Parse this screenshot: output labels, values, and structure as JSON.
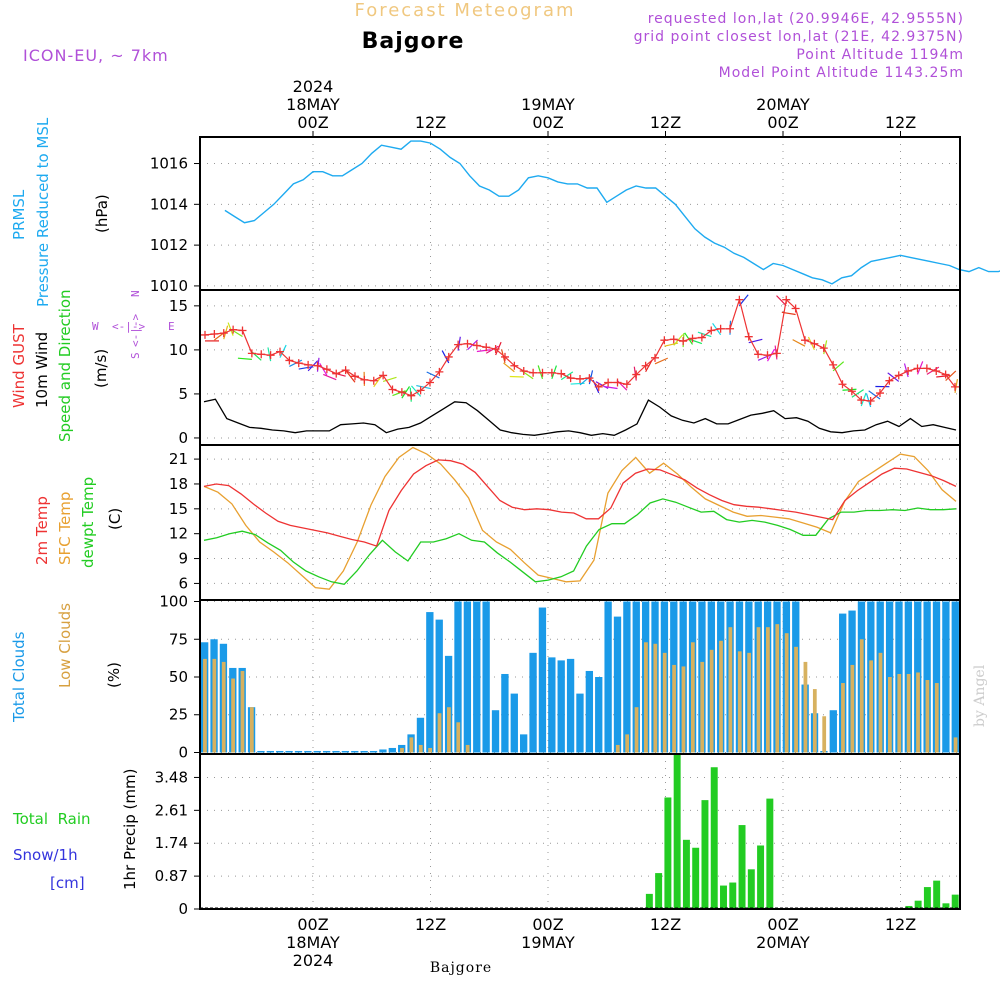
{
  "header": {
    "title_faint": "Forecast Meteogram",
    "location": "Bajgore",
    "model": "ICON-EU, ~ 7km",
    "requested": "requested lon,lat (20.9946E, 42.9555N)",
    "grid_point": "grid point closest lon,lat (21E, 42.9375N)",
    "point_alt": "Point Altitude 1194m",
    "model_alt": "Model Point Altitude 1143.25m"
  },
  "time_axis": {
    "top_labels": [
      {
        "line1": "2024",
        "line2": "18MAY",
        "line3": "00Z",
        "hour": 24
      },
      {
        "line1": "",
        "line2": "",
        "line3": "12Z",
        "hour": 36
      },
      {
        "line1": "",
        "line2": "19MAY",
        "line3": "00Z",
        "hour": 48
      },
      {
        "line1": "",
        "line2": "",
        "line3": "12Z",
        "hour": 60
      },
      {
        "line1": "",
        "line2": "20MAY",
        "line3": "00Z",
        "hour": 72
      },
      {
        "line1": "",
        "line2": "",
        "line3": "12Z",
        "hour": 84
      }
    ],
    "bottom_labels": [
      {
        "line1": "00Z",
        "line2": "18MAY",
        "line3": "2024",
        "hour": 24
      },
      {
        "line1": "12Z",
        "line2": "",
        "line3": "",
        "hour": 36
      },
      {
        "line1": "00Z",
        "line2": "19MAY",
        "line3": "",
        "hour": 48
      },
      {
        "line1": "12Z",
        "line2": "",
        "line3": "",
        "hour": 60
      },
      {
        "line1": "00Z",
        "line2": "20MAY",
        "line3": "",
        "hour": 72
      },
      {
        "line1": "12Z",
        "line2": "",
        "line3": "",
        "hour": 84
      }
    ],
    "footer": "Bajgore",
    "credit": "by Angel"
  },
  "panels": {
    "pressure": {
      "label1": "PRMSL",
      "label2": "Pressure Reduced to MSL",
      "unit": "(hPa)"
    },
    "wind": {
      "label_gust": "Wind GUST",
      "label_wind": "10m Wind",
      "label_dir": "Speed and Direction",
      "unit": "(m/s)",
      "compass_n": "N",
      "compass_s": "S",
      "compass_w": "W",
      "compass_e": "E"
    },
    "temp": {
      "label_2m": "2m Temp",
      "label_sfc": "SFC Temp",
      "label_dew": "dewpt Temp",
      "unit": "(C)"
    },
    "clouds": {
      "label_total": "Total Clouds",
      "label_low": "Low Clouds",
      "unit": "(%)"
    },
    "precip": {
      "label_rain": "Total  Rain",
      "label_snow": "Snow/1h",
      "label_cm": "[cm]",
      "axis_label": "1hr Precip (mm)"
    }
  },
  "colors": {
    "pressure": "#1eaaf0",
    "gust": "#ee3333",
    "wind": "#000000",
    "temp": "#ee3333",
    "sfc": "#e8a030",
    "dew": "#22cc22",
    "total_cloud": "#1a9ae8",
    "low_cloud": "#d7b15f",
    "rain": "#22cc22",
    "title_faint": "#f0c880",
    "purple": "#b050d8",
    "snow_label": "#3333dd"
  },
  "chart_data": [
    {
      "type": "line",
      "name": "PRMSL",
      "ylabel": "(hPa)",
      "ylim": [
        1009.8,
        1017.3
      ],
      "yticks": [
        "1010",
        "1012",
        "1014",
        "1016"
      ],
      "ytick_values": [
        1010,
        1012,
        1014,
        1016
      ],
      "x_hours_start": 15,
      "values": [
        1013.7,
        1013.4,
        1013.1,
        1013.2,
        1013.6,
        1014.0,
        1014.5,
        1015.0,
        1015.2,
        1015.6,
        1015.6,
        1015.4,
        1015.4,
        1015.7,
        1016.0,
        1016.5,
        1016.9,
        1016.8,
        1016.7,
        1017.1,
        1017.1,
        1017.0,
        1016.7,
        1016.3,
        1016.0,
        1015.4,
        1014.9,
        1014.7,
        1014.4,
        1014.4,
        1014.7,
        1015.3,
        1015.4,
        1015.3,
        1015.1,
        1015.0,
        1015.0,
        1014.8,
        1014.8,
        1014.1,
        1014.4,
        1014.7,
        1014.9,
        1014.8,
        1014.8,
        1014.4,
        1014.0,
        1013.4,
        1012.8,
        1012.4,
        1012.1,
        1011.9,
        1011.6,
        1011.4,
        1011.1,
        1010.8,
        1011.1,
        1011.0,
        1010.8,
        1010.6,
        1010.4,
        1010.3,
        1010.1,
        1010.4,
        1010.5,
        1010.9,
        1011.2,
        1011.3,
        1011.4,
        1011.5,
        1011.4,
        1011.3,
        1011.2,
        1011.1,
        1011.0,
        1010.8,
        1010.7,
        1010.9,
        1010.7,
        1010.7,
        1010.9
      ]
    },
    {
      "type": "line",
      "name": "Wind",
      "ylabel": "(m/s)",
      "ylim": [
        -0.8,
        16.8
      ],
      "yticks": [
        "0",
        "5",
        "10",
        "15"
      ],
      "ytick_values": [
        0,
        5,
        10,
        15
      ],
      "x_hours_start": 15,
      "gust": [
        11.7,
        11.8,
        11.9,
        12.3,
        12.2,
        9.6,
        9.5,
        9.4,
        9.8,
        8.8,
        8.5,
        8.3,
        8.2,
        7.8,
        7.3,
        7.7,
        7.0,
        6.6,
        6.5,
        7.1,
        5.5,
        5.2,
        4.8,
        5.4,
        6.3,
        7.5,
        9.2,
        10.6,
        10.7,
        10.5,
        10.3,
        10.1,
        9.2,
        8.2,
        7.6,
        7.4,
        7.4,
        7.4,
        7.3,
        6.8,
        6.7,
        6.8,
        5.8,
        6.3,
        6.3,
        6.1,
        7.2,
        8.2,
        9.1,
        11.1,
        11.2,
        11.0,
        11.3,
        11.4,
        12.2,
        12.4,
        12.4,
        15.7,
        11.5,
        9.5,
        9.4,
        9.6,
        15.7,
        14.7,
        11.1,
        10.7,
        10.2,
        8.3,
        6.1,
        5.3,
        4.3,
        4.2,
        5.1,
        6.5,
        7.1,
        7.6,
        7.9,
        7.9,
        7.6,
        7.2,
        5.8
      ],
      "speed": [
        4.1,
        4.4,
        2.2,
        1.7,
        1.2,
        1.1,
        0.9,
        0.8,
        0.6,
        0.8,
        0.8,
        0.8,
        1.5,
        1.6,
        1.7,
        1.5,
        0.6,
        1.0,
        1.2,
        1.7,
        2.5,
        3.3,
        4.1,
        4.0,
        3.1,
        2.0,
        0.9,
        0.6,
        0.4,
        0.3,
        0.5,
        0.7,
        0.8,
        0.6,
        0.3,
        0.5,
        0.3,
        0.9,
        1.6,
        4.3,
        3.5,
        2.5,
        2.0,
        1.7,
        2.2,
        1.6,
        1.6,
        2.1,
        2.6,
        2.8,
        3.1,
        2.2,
        2.3,
        1.9,
        1.1,
        0.7,
        0.6,
        0.8,
        0.9,
        1.5,
        1.9,
        1.3,
        2.2,
        1.3,
        1.5,
        1.2,
        0.9
      ]
    },
    {
      "type": "line",
      "name": "Temperature",
      "ylabel": "(C)",
      "ylim": [
        4.0,
        22.7
      ],
      "yticks": [
        "6",
        "9",
        "12",
        "15",
        "18",
        "21"
      ],
      "ytick_values": [
        6,
        9,
        12,
        15,
        18,
        21
      ],
      "x_hours_start": 15,
      "t2m": [
        17.7,
        18.0,
        17.8,
        16.8,
        15.6,
        14.5,
        13.5,
        13.0,
        12.7,
        12.4,
        12.1,
        11.7,
        11.3,
        11.0,
        10.5,
        14.8,
        17.2,
        19.2,
        20.2,
        20.9,
        20.8,
        20.4,
        19.4,
        17.7,
        16.0,
        15.2,
        14.9,
        15.0,
        14.9,
        14.6,
        14.5,
        13.8,
        13.8,
        15.1,
        18.1,
        19.3,
        19.8,
        19.7,
        19.1,
        18.5,
        17.5,
        16.7,
        16.0,
        15.5,
        15.3,
        15.2,
        15.0,
        14.8,
        14.6,
        14.3,
        14.0,
        13.7,
        16.0,
        17.2,
        18.2,
        19.2,
        19.9,
        19.8,
        19.4,
        19.0,
        18.4,
        17.7
      ],
      "sfc": [
        17.7,
        17.0,
        15.6,
        13.0,
        11.0,
        9.8,
        8.5,
        7.0,
        5.5,
        5.3,
        7.5,
        11.0,
        15.5,
        18.9,
        21.2,
        22.4,
        21.6,
        20.4,
        18.5,
        16.3,
        12.4,
        11.0,
        10.1,
        8.5,
        7.0,
        6.6,
        6.2,
        6.3,
        8.8,
        16.9,
        19.6,
        21.2,
        19.3,
        20.5,
        19.2,
        17.6,
        16.2,
        15.4,
        14.6,
        14.1,
        14.2,
        14.0,
        13.8,
        13.3,
        12.8,
        12.1,
        15.9,
        18.3,
        19.4,
        20.5,
        21.6,
        21.3,
        19.6,
        17.3,
        15.9
      ],
      "dewpt": [
        11.2,
        11.5,
        12.0,
        12.3,
        11.9,
        10.9,
        10.0,
        8.6,
        7.5,
        6.8,
        6.2,
        5.9,
        7.5,
        9.5,
        11.2,
        9.8,
        8.7,
        11.0,
        11.0,
        11.4,
        12.0,
        11.2,
        11.0,
        9.7,
        8.6,
        7.4,
        6.2,
        6.4,
        6.8,
        7.5,
        10.5,
        12.5,
        13.2,
        13.2,
        14.3,
        15.7,
        16.2,
        15.8,
        15.2,
        14.6,
        14.7,
        13.7,
        13.4,
        13.6,
        13.4,
        13.0,
        12.5,
        11.8,
        11.8,
        13.8,
        14.6,
        14.6,
        14.8,
        14.8,
        14.9,
        14.8,
        15.1,
        14.9,
        14.9,
        15.0
      ]
    },
    {
      "type": "bar",
      "name": "Clouds",
      "ylabel": "(%)",
      "ylim": [
        -1,
        101
      ],
      "yticks": [
        "0",
        "25",
        "50",
        "75",
        "100"
      ],
      "ytick_values": [
        0,
        25,
        50,
        75,
        100
      ],
      "x_hours_start": 15,
      "total": [
        73,
        75,
        72,
        56,
        56,
        30,
        1,
        1,
        1,
        1,
        1,
        1,
        1,
        1,
        1,
        1,
        1,
        1,
        1,
        2,
        3,
        5,
        12,
        23,
        93,
        88,
        64,
        100,
        100,
        100,
        100,
        28,
        52,
        39,
        12,
        66,
        96,
        63,
        61,
        62,
        39,
        54,
        50,
        100,
        90,
        100,
        100,
        100,
        100,
        100,
        100,
        100,
        100,
        100,
        100,
        100,
        100,
        100,
        100,
        100,
        100,
        100,
        100,
        100,
        45,
        26,
        1,
        28,
        92,
        94,
        100,
        100,
        100,
        100,
        100,
        100,
        100,
        100,
        100,
        100,
        100
      ],
      "low": [
        62,
        62,
        60,
        49,
        54,
        30,
        0,
        0,
        0,
        0,
        0,
        0,
        0,
        0,
        0,
        0,
        0,
        0,
        0,
        0,
        0,
        3,
        10,
        5,
        3,
        26,
        30,
        20,
        5,
        0,
        0,
        0,
        0,
        0,
        0,
        0,
        0,
        0,
        0,
        0,
        0,
        0,
        0,
        0,
        5,
        12,
        30,
        73,
        72,
        66,
        58,
        57,
        73,
        60,
        68,
        74,
        83,
        67,
        66,
        83,
        83,
        85,
        79,
        70,
        60,
        42,
        24,
        0,
        46,
        58,
        75,
        61,
        66,
        50,
        52,
        52,
        53,
        48,
        46,
        0,
        10
      ]
    },
    {
      "type": "bar",
      "name": "Precipitation",
      "ylabel": "1hr Precip (mm)",
      "ylim": [
        0,
        4.1
      ],
      "yticks": [
        "0",
        "0.87",
        "1.74",
        "2.61",
        "3.48"
      ],
      "ytick_values": [
        0,
        0.87,
        1.74,
        2.61,
        3.48
      ],
      "x_hours_start": 15,
      "rain": [
        0,
        0,
        0,
        0,
        0,
        0,
        0,
        0,
        0,
        0,
        0,
        0,
        0,
        0,
        0,
        0,
        0,
        0,
        0,
        0,
        0,
        0,
        0,
        0,
        0,
        0,
        0,
        0,
        0,
        0,
        0,
        0,
        0,
        0,
        0,
        0,
        0,
        0,
        0,
        0,
        0,
        0,
        0,
        0,
        0,
        0,
        0,
        0.02,
        0.4,
        0.95,
        2.95,
        4.1,
        1.83,
        1.62,
        2.88,
        3.75,
        0.62,
        0.7,
        2.22,
        1.05,
        1.68,
        2.92,
        0,
        0,
        0,
        0,
        0,
        0,
        0,
        0,
        0,
        0,
        0,
        0,
        0,
        0,
        0.08,
        0.22,
        0.58,
        0.75,
        0.15,
        0.38
      ]
    }
  ]
}
